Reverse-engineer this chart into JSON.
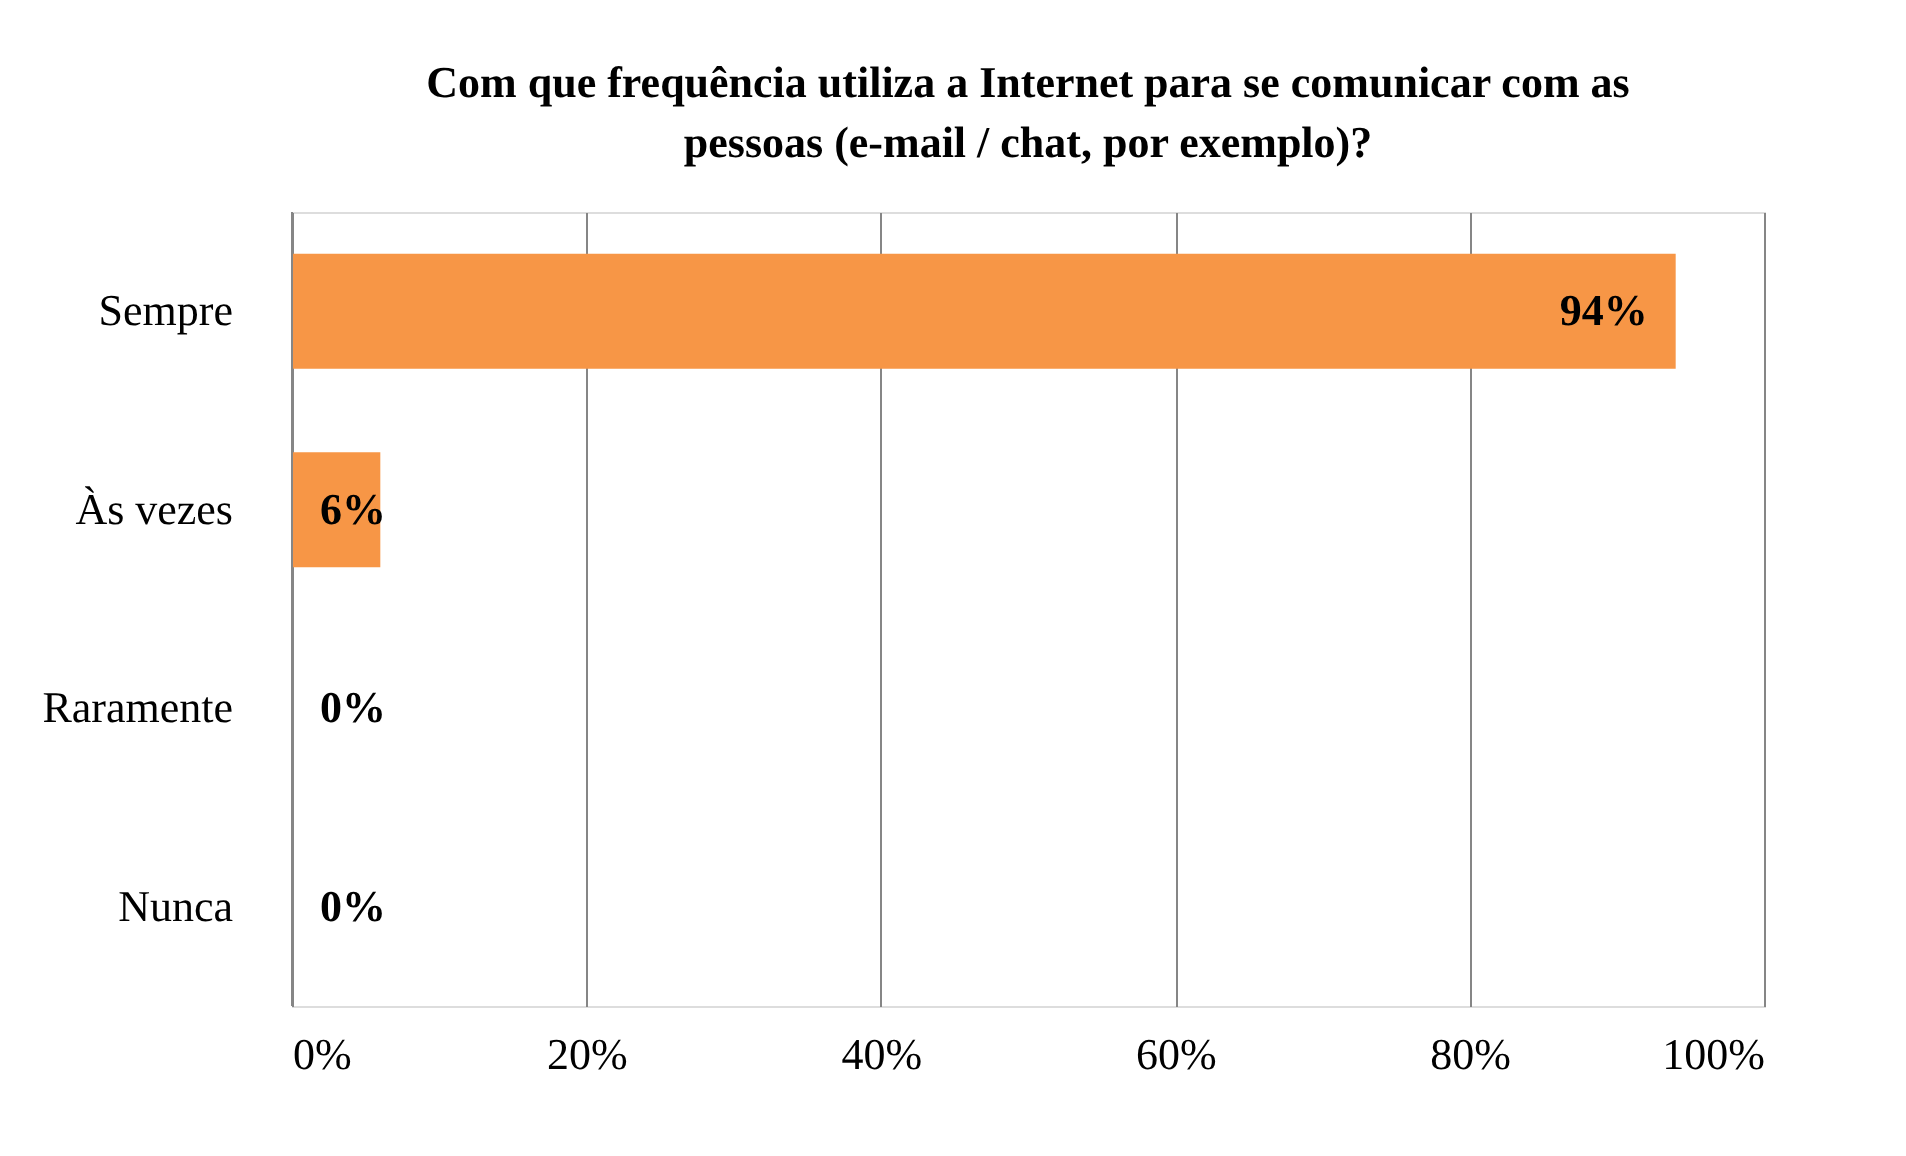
{
  "chart_data": {
    "type": "bar",
    "orientation": "horizontal",
    "title": "Com que frequência utiliza a Internet para se comunicar com as pessoas (e-mail / chat, por exemplo)?",
    "categories": [
      "Sempre",
      "Às vezes",
      "Raramente",
      "Nunca"
    ],
    "values": [
      94,
      6,
      0,
      0
    ],
    "color": "#f79646",
    "value_labels": [
      "94%",
      "6%",
      "0%",
      "0%"
    ],
    "xlim": [
      0,
      100
    ],
    "xticks": [
      {
        "value": 0,
        "label": "0%"
      },
      {
        "value": 20,
        "label": "20%"
      },
      {
        "value": 40,
        "label": "40%"
      },
      {
        "value": 60,
        "label": "60%"
      },
      {
        "value": 80,
        "label": "80%"
      },
      {
        "value": 100,
        "label": "100%"
      }
    ],
    "grid": "x"
  }
}
